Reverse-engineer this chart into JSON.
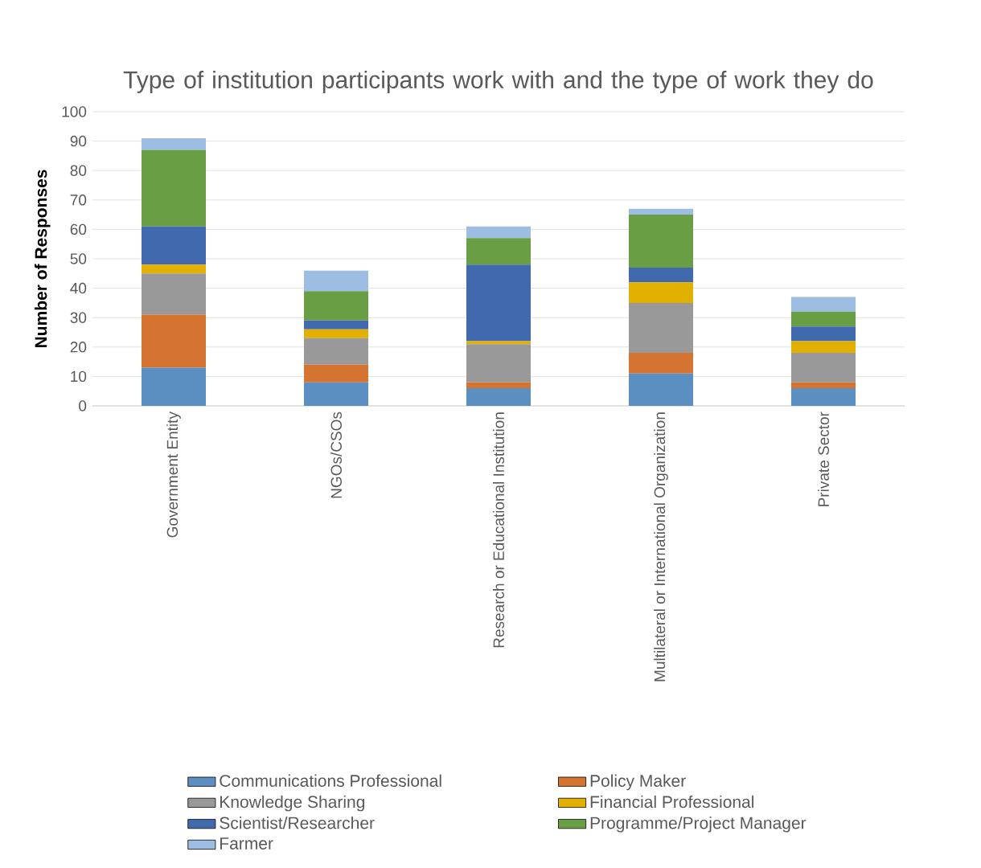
{
  "chart_data": {
    "type": "bar",
    "stacked": true,
    "title": "Type of institution participants work with and the type of work they do",
    "ylabel": "Number of Responses",
    "categories": [
      "Government Entity",
      "NGOs/CSOs",
      "Research or Educational Institution",
      "Multilateral or International Organization",
      "Private Sector"
    ],
    "series": [
      {
        "name": "Communications Professional",
        "color": "#5b8fc1",
        "values": [
          13,
          8,
          6,
          11,
          6
        ]
      },
      {
        "name": "Policy Maker",
        "color": "#d57430",
        "values": [
          18,
          6,
          2,
          7,
          2
        ]
      },
      {
        "name": "Knowledge Sharing",
        "color": "#999999",
        "values": [
          14,
          9,
          13,
          17,
          10
        ]
      },
      {
        "name": "Financial Professional",
        "color": "#e2b000",
        "values": [
          3,
          3,
          1,
          7,
          4
        ]
      },
      {
        "name": "Scientist/Researcher",
        "color": "#416aae",
        "values": [
          13,
          3,
          26,
          5,
          5
        ]
      },
      {
        "name": "Programme/Project Manager",
        "color": "#6a9e44",
        "values": [
          26,
          10,
          9,
          18,
          5
        ]
      },
      {
        "name": "Farmer",
        "color": "#9dbde2",
        "values": [
          4,
          7,
          4,
          2,
          5
        ]
      }
    ],
    "ylim": [
      0,
      100
    ],
    "yticks": [
      0,
      10,
      20,
      30,
      40,
      50,
      60,
      70,
      80,
      90,
      100
    ],
    "grid": "y",
    "legend": "bottom"
  }
}
